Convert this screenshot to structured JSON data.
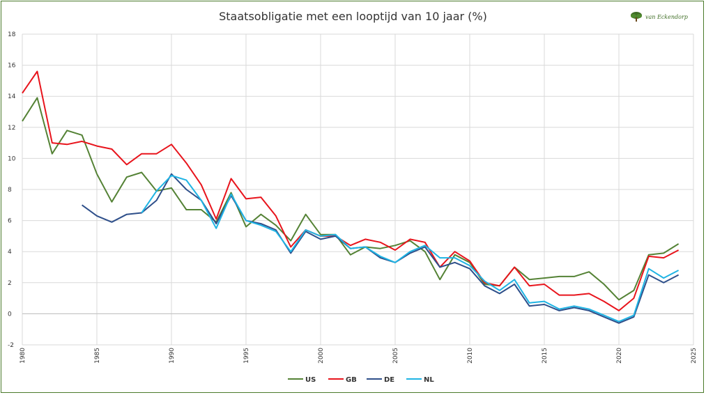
{
  "logo": {
    "text": "van Eckendorp",
    "icon": "tree-icon"
  },
  "chart_data": {
    "type": "line",
    "title": "Staatsobligatie met een looptijd van 10 jaar (%)",
    "xlabel": "",
    "ylabel": "",
    "xlim": [
      1980,
      2025
    ],
    "ylim": [
      -2,
      18
    ],
    "xticks": [
      "1980",
      "1985",
      "1990",
      "1995",
      "2000",
      "2005",
      "2010",
      "2015",
      "2020",
      "2025"
    ],
    "yticks": [
      "-2",
      "0",
      "2",
      "4",
      "6",
      "8",
      "10",
      "12",
      "14",
      "16",
      "18"
    ],
    "grid": true,
    "legend_position": "bottom",
    "series": [
      {
        "name": "US",
        "color": "#548235",
        "points": [
          [
            1980,
            12.4
          ],
          [
            1981,
            13.9
          ],
          [
            1982,
            10.3
          ],
          [
            1983,
            11.8
          ],
          [
            1984,
            11.5
          ],
          [
            1985,
            9.0
          ],
          [
            1986,
            7.2
          ],
          [
            1987,
            8.8
          ],
          [
            1988,
            9.1
          ],
          [
            1989,
            7.9
          ],
          [
            1990,
            8.1
          ],
          [
            1991,
            6.7
          ],
          [
            1992,
            6.7
          ],
          [
            1993,
            5.9
          ],
          [
            1994,
            7.8
          ],
          [
            1995,
            5.6
          ],
          [
            1996,
            6.4
          ],
          [
            1997,
            5.7
          ],
          [
            1998,
            4.7
          ],
          [
            1999,
            6.4
          ],
          [
            2000,
            5.1
          ],
          [
            2001,
            5.1
          ],
          [
            2002,
            3.8
          ],
          [
            2003,
            4.3
          ],
          [
            2004,
            4.2
          ],
          [
            2005,
            4.4
          ],
          [
            2006,
            4.7
          ],
          [
            2007,
            4.0
          ],
          [
            2008,
            2.2
          ],
          [
            2009,
            3.8
          ],
          [
            2010,
            3.3
          ],
          [
            2011,
            1.9
          ],
          [
            2012,
            1.8
          ],
          [
            2013,
            3.0
          ],
          [
            2014,
            2.2
          ],
          [
            2015,
            2.3
          ],
          [
            2016,
            2.4
          ],
          [
            2017,
            2.4
          ],
          [
            2018,
            2.7
          ],
          [
            2019,
            1.9
          ],
          [
            2020,
            0.9
          ],
          [
            2021,
            1.5
          ],
          [
            2022,
            3.8
          ],
          [
            2023,
            3.9
          ],
          [
            2024,
            4.5
          ]
        ]
      },
      {
        "name": "GB",
        "color": "#e8141c",
        "points": [
          [
            1980,
            14.2
          ],
          [
            1981,
            15.6
          ],
          [
            1982,
            11.0
          ],
          [
            1983,
            10.9
          ],
          [
            1984,
            11.1
          ],
          [
            1985,
            10.8
          ],
          [
            1986,
            10.6
          ],
          [
            1987,
            9.6
          ],
          [
            1988,
            10.3
          ],
          [
            1989,
            10.3
          ],
          [
            1990,
            10.9
          ],
          [
            1991,
            9.7
          ],
          [
            1992,
            8.3
          ],
          [
            1993,
            6.1
          ],
          [
            1994,
            8.7
          ],
          [
            1995,
            7.4
          ],
          [
            1996,
            7.5
          ],
          [
            1997,
            6.3
          ],
          [
            1998,
            4.3
          ],
          [
            1999,
            5.4
          ],
          [
            2000,
            5.0
          ],
          [
            2001,
            5.0
          ],
          [
            2002,
            4.4
          ],
          [
            2003,
            4.8
          ],
          [
            2004,
            4.6
          ],
          [
            2005,
            4.1
          ],
          [
            2006,
            4.8
          ],
          [
            2007,
            4.6
          ],
          [
            2008,
            3.0
          ],
          [
            2009,
            4.0
          ],
          [
            2010,
            3.4
          ],
          [
            2011,
            2.0
          ],
          [
            2012,
            1.8
          ],
          [
            2013,
            3.0
          ],
          [
            2014,
            1.8
          ],
          [
            2015,
            1.9
          ],
          [
            2016,
            1.2
          ],
          [
            2017,
            1.2
          ],
          [
            2018,
            1.3
          ],
          [
            2019,
            0.8
          ],
          [
            2020,
            0.2
          ],
          [
            2021,
            1.0
          ],
          [
            2022,
            3.7
          ],
          [
            2023,
            3.6
          ],
          [
            2024,
            4.1
          ]
        ]
      },
      {
        "name": "DE",
        "color": "#2e4f8a",
        "points": [
          [
            1984,
            7.0
          ],
          [
            1985,
            6.3
          ],
          [
            1986,
            5.9
          ],
          [
            1987,
            6.4
          ],
          [
            1988,
            6.5
          ],
          [
            1989,
            7.3
          ],
          [
            1990,
            9.0
          ],
          [
            1991,
            8.0
          ],
          [
            1992,
            7.3
          ],
          [
            1993,
            5.8
          ],
          [
            1994,
            7.6
          ],
          [
            1995,
            6.0
          ],
          [
            1996,
            5.8
          ],
          [
            1997,
            5.4
          ],
          [
            1998,
            3.9
          ],
          [
            1999,
            5.3
          ],
          [
            2000,
            4.8
          ],
          [
            2001,
            5.0
          ],
          [
            2002,
            4.2
          ],
          [
            2003,
            4.3
          ],
          [
            2004,
            3.6
          ],
          [
            2005,
            3.3
          ],
          [
            2006,
            3.9
          ],
          [
            2007,
            4.3
          ],
          [
            2008,
            3.0
          ],
          [
            2009,
            3.3
          ],
          [
            2010,
            2.9
          ],
          [
            2011,
            1.8
          ],
          [
            2012,
            1.3
          ],
          [
            2013,
            1.9
          ],
          [
            2014,
            0.5
          ],
          [
            2015,
            0.6
          ],
          [
            2016,
            0.2
          ],
          [
            2017,
            0.4
          ],
          [
            2018,
            0.2
          ],
          [
            2019,
            -0.2
          ],
          [
            2020,
            -0.6
          ],
          [
            2021,
            -0.2
          ],
          [
            2022,
            2.5
          ],
          [
            2023,
            2.0
          ],
          [
            2024,
            2.5
          ]
        ]
      },
      {
        "name": "NL",
        "color": "#1fb4e4",
        "points": [
          [
            1988,
            6.5
          ],
          [
            1989,
            7.9
          ],
          [
            1990,
            8.9
          ],
          [
            1991,
            8.6
          ],
          [
            1992,
            7.3
          ],
          [
            1993,
            5.5
          ],
          [
            1994,
            7.7
          ],
          [
            1995,
            6.0
          ],
          [
            1996,
            5.7
          ],
          [
            1997,
            5.3
          ],
          [
            1998,
            4.0
          ],
          [
            1999,
            5.4
          ],
          [
            2000,
            5.0
          ],
          [
            2001,
            5.1
          ],
          [
            2002,
            4.2
          ],
          [
            2003,
            4.3
          ],
          [
            2004,
            3.7
          ],
          [
            2005,
            3.3
          ],
          [
            2006,
            4.0
          ],
          [
            2007,
            4.4
          ],
          [
            2008,
            3.6
          ],
          [
            2009,
            3.6
          ],
          [
            2010,
            3.1
          ],
          [
            2011,
            2.1
          ],
          [
            2012,
            1.5
          ],
          [
            2013,
            2.2
          ],
          [
            2014,
            0.7
          ],
          [
            2015,
            0.8
          ],
          [
            2016,
            0.3
          ],
          [
            2017,
            0.5
          ],
          [
            2018,
            0.3
          ],
          [
            2019,
            -0.1
          ],
          [
            2020,
            -0.5
          ],
          [
            2021,
            -0.1
          ],
          [
            2022,
            2.9
          ],
          [
            2023,
            2.3
          ],
          [
            2024,
            2.8
          ]
        ]
      }
    ]
  }
}
